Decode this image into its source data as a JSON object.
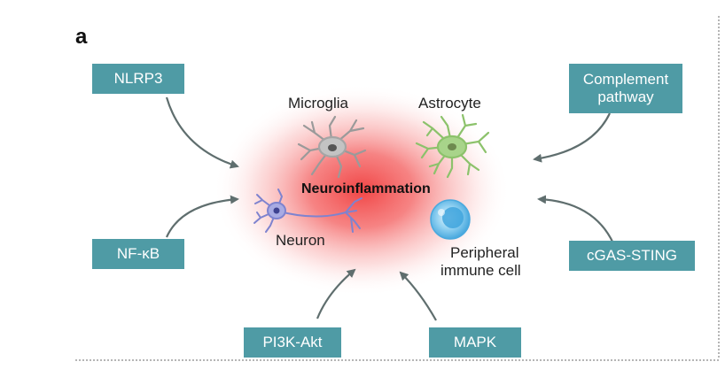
{
  "panel_label": "a",
  "center_title": "Neuroinflammation",
  "cells": {
    "microglia": "Microglia",
    "astrocyte": "Astrocyte",
    "neuron": "Neuron",
    "peripheral_line1": "Peripheral",
    "peripheral_line2": "immune cell"
  },
  "pathways": {
    "nlrp3": "NLRP3",
    "complement_line1": "Complement",
    "complement_line2": "pathway",
    "nfkb": "NF-κB",
    "cgas_sting": "cGAS-STING",
    "pi3k_akt": "PI3K-Akt",
    "mapk": "MAPK"
  },
  "colors": {
    "box": "#4f9ba5",
    "glow": "#f24a4a",
    "arrow": "#5f6e6e",
    "microglia": "#9a9a9a",
    "astrocyte": "#8cc26b",
    "neuron": "#7e83cf",
    "immune_cell": "#5fb8e8"
  }
}
